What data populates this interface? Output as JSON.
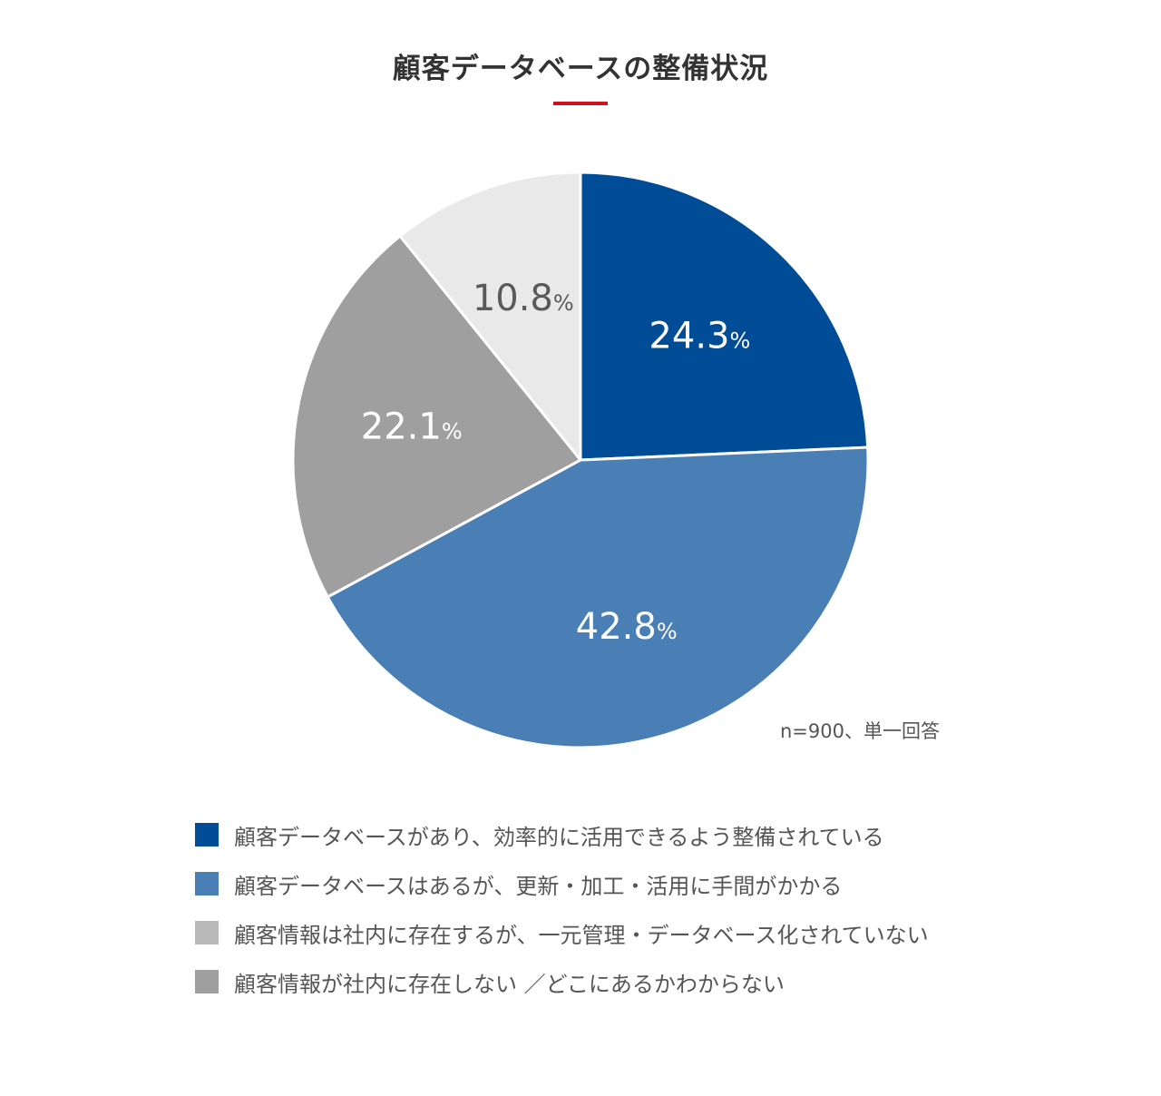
{
  "chart_data": {
    "type": "pie",
    "title": "顧客データベースの整備状況",
    "note": "n=900、単一回答",
    "unit": "%",
    "slices": [
      {
        "label": "顧客データベースがあり、効率的に活用できるよう整備されている",
        "value": 24.3,
        "display": "24.3",
        "color": "#004c97",
        "label_color": "#ffffff"
      },
      {
        "label": "顧客データベースはあるが、更新・加工・活用に手間がかかる",
        "value": 42.8,
        "display": "42.8",
        "color": "#4a7fb5",
        "label_color": "#ffffff"
      },
      {
        "label": "顧客情報が社内に存在しない ／どこにあるかわからない",
        "value": 22.1,
        "display": "22.1",
        "color": "#9f9f9f",
        "label_color": "#ffffff"
      },
      {
        "label": "顧客情報は社内に存在するが、一元管理・データベース化されていない",
        "value": 10.8,
        "display": "10.8",
        "color": "#e9e9e9",
        "label_color": "#5a5a5a"
      }
    ],
    "legend": [
      {
        "label": "顧客データベースがあり、効率的に活用できるよう整備されている",
        "color": "#004c97"
      },
      {
        "label": "顧客データベースはあるが、更新・加工・活用に手間がかかる",
        "color": "#4a7fb5"
      },
      {
        "label": "顧客情報は社内に存在するが、一元管理・データベース化されていない",
        "color": "#b9b9b9"
      },
      {
        "label": "顧客情報が社内に存在しない ／どこにあるかわからない",
        "color": "#9f9f9f"
      }
    ],
    "accent_color": "#d0121b"
  }
}
